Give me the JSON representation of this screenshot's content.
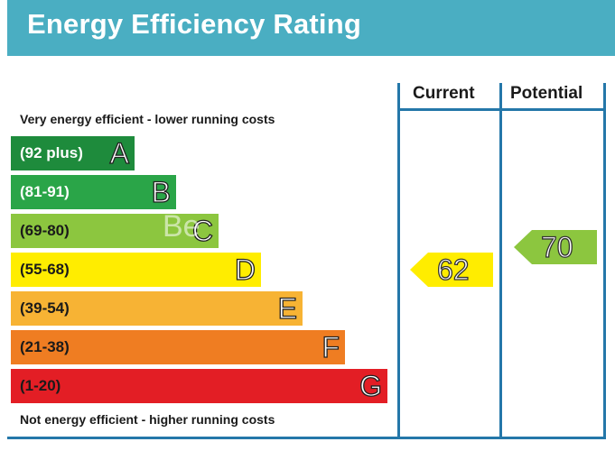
{
  "title": "Energy Efficiency Rating",
  "columns": {
    "current": "Current",
    "potential": "Potential"
  },
  "top_caption": "Very energy efficient - lower running costs",
  "bottom_caption": "Not energy efficient - higher running costs",
  "bands": [
    {
      "range": "(92 plus)",
      "letter": "A",
      "color": "#1e8b3c",
      "text_color": "#ffffff"
    },
    {
      "range": "(81-91)",
      "letter": "B",
      "color": "#2aa548",
      "text_color": "#ffffff"
    },
    {
      "range": "(69-80)",
      "letter": "C",
      "color": "#8cc63f",
      "text_color": "#1a1a1a"
    },
    {
      "range": "(55-68)",
      "letter": "D",
      "color": "#ffed00",
      "text_color": "#1a1a1a"
    },
    {
      "range": "(39-54)",
      "letter": "E",
      "color": "#f7b334",
      "text_color": "#1a1a1a"
    },
    {
      "range": "(21-38)",
      "letter": "F",
      "color": "#ef7d22",
      "text_color": "#1a1a1a"
    },
    {
      "range": "(1-20)",
      "letter": "G",
      "color": "#e31e25",
      "text_color": "#1a1a1a"
    }
  ],
  "current_rating": {
    "value": "62",
    "band": "D",
    "color": "#ffed00"
  },
  "potential_rating": {
    "value": "70",
    "band": "C",
    "color": "#8cc63f"
  },
  "watermark_text": "Be"
}
